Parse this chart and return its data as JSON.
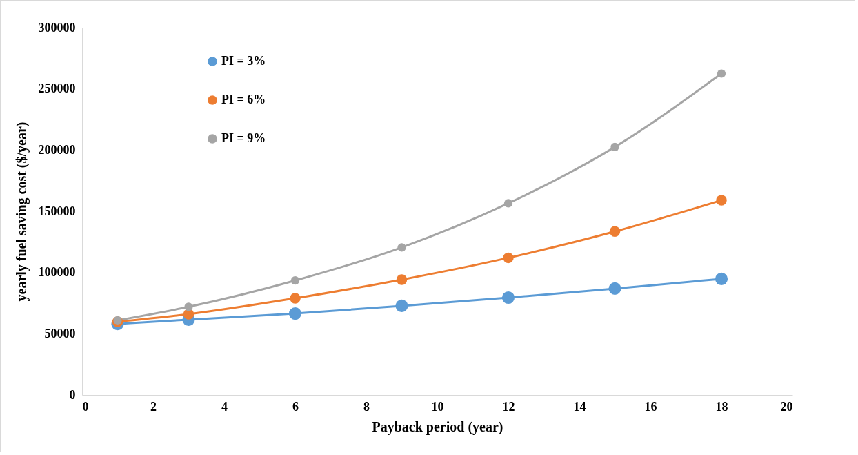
{
  "chart_data": {
    "type": "line",
    "xlabel": "Payback  period (year)",
    "ylabel": "yearly fuel saving cost ($/year)",
    "x": [
      1,
      3,
      6,
      9,
      12,
      15,
      18
    ],
    "series": [
      {
        "name": "PI = 3%",
        "color": "#5b9bd5",
        "values": [
          58000,
          61500,
          66500,
          72800,
          79500,
          86900,
          94800
        ]
      },
      {
        "name": "PI = 6%",
        "color": "#ed7d31",
        "values": [
          59800,
          66000,
          79000,
          94200,
          112000,
          133500,
          159000
        ]
      },
      {
        "name": "PI = 9%",
        "color": "#a5a5a5",
        "values": [
          61000,
          72000,
          93500,
          120500,
          156500,
          202500,
          262500
        ]
      }
    ],
    "xlim": [
      0,
      20
    ],
    "xticks": [
      0,
      2,
      4,
      6,
      8,
      10,
      12,
      14,
      16,
      18,
      20
    ],
    "ylim": [
      0,
      300000
    ],
    "yticks": [
      0,
      50000,
      100000,
      150000,
      200000,
      250000,
      300000
    ],
    "grid": false,
    "legend": "top left",
    "marker": "circle",
    "line_style": "solid"
  }
}
